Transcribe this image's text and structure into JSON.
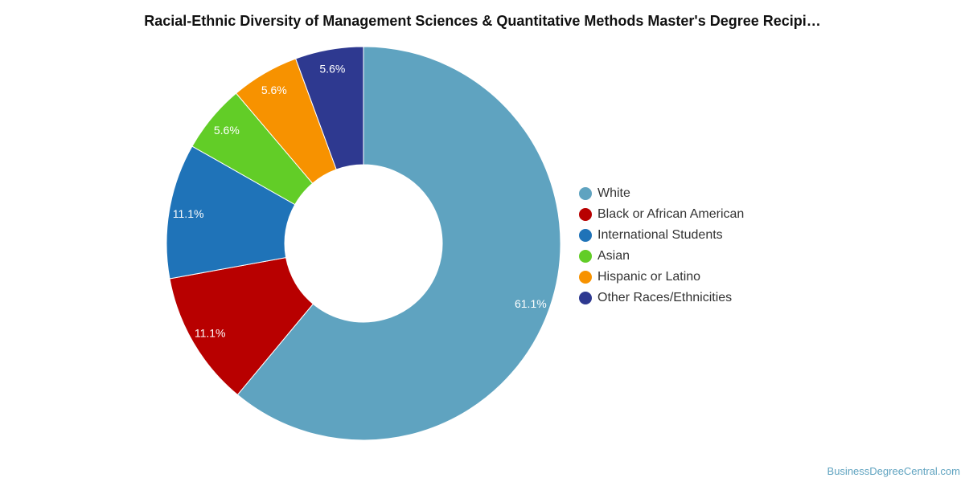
{
  "chart_data": {
    "type": "pie",
    "title": "Racial-Ethnic Diversity of Management Sciences & Quantitative Methods Master's Degree Recipi…",
    "donut": true,
    "legend_position": "right",
    "categories": [
      "White",
      "Black or African American",
      "International Students",
      "Asian",
      "Hispanic or Latino",
      "Other Races/Ethnicities"
    ],
    "values": [
      61.1,
      11.1,
      11.1,
      5.6,
      5.6,
      5.6
    ],
    "labels": [
      "61.1%",
      "11.1%",
      "11.1%",
      "5.6%",
      "5.6%",
      "5.6%"
    ],
    "colors": [
      "#5fa3c0",
      "#b80000",
      "#1f73b8",
      "#62cd27",
      "#f79200",
      "#2e3990"
    ]
  },
  "source": "BusinessDegreeCentral.com"
}
